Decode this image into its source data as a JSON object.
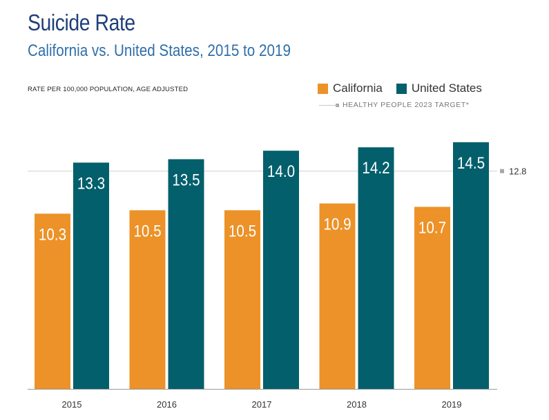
{
  "chart_data": {
    "type": "bar",
    "title": "Suicide Rate",
    "subtitle": "California vs. United States, 2015 to 2019",
    "ylabel": "RATE PER 100,000 POPULATION, AGE ADJUSTED",
    "categories": [
      "2015",
      "2016",
      "2017",
      "2018",
      "2019"
    ],
    "series": [
      {
        "name": "California",
        "color": "#ec9228",
        "values": [
          10.3,
          10.5,
          10.5,
          10.9,
          10.7
        ],
        "labels": [
          "10.3",
          "10.5",
          "10.5",
          "10.9",
          "10.7"
        ]
      },
      {
        "name": "United States",
        "color": "#045f6c",
        "values": [
          13.3,
          13.5,
          14.0,
          14.2,
          14.5
        ],
        "labels": [
          "13.3",
          "13.5",
          "14.0",
          "14.2",
          "14.5"
        ]
      }
    ],
    "target": {
      "label": "HEALTHY PEOPLE 2023 TARGET*",
      "value": 12.8,
      "value_label": "12.8",
      "color": "#a8a8a8"
    },
    "ylim": [
      0,
      14.9
    ],
    "grid": false,
    "legend": "top-right"
  }
}
